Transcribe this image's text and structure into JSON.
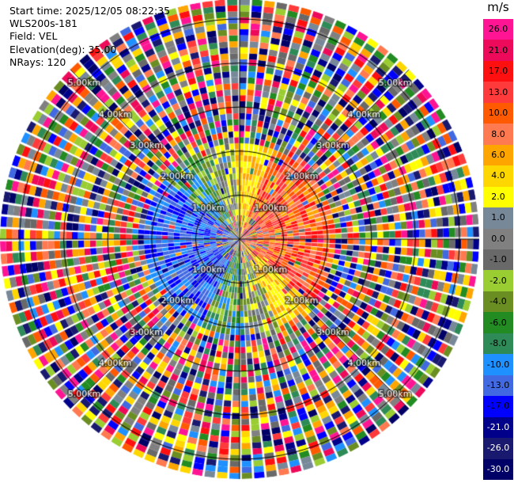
{
  "info": {
    "start_time": "Start time: 2025/12/05 08:22:35",
    "station": "WLS200s-181",
    "field": "Field: VEL",
    "elevation": "Elevation(deg): 35.00",
    "nrays": "NRays: 120"
  },
  "colorbar": {
    "unit": "m/s",
    "labels": [
      "26.0",
      "21.0",
      "17.0",
      "13.0",
      "10.0",
      "8.0",
      "6.0",
      "4.0",
      "2.0",
      "1.0",
      "0.0",
      "-1.0",
      "-2.0",
      "-4.0",
      "-6.0",
      "-8.0",
      "-10.0",
      "-13.0",
      "-17.0",
      "-21.0",
      "-26.0",
      "-30.0"
    ],
    "colors": [
      "#ff1493",
      "#ee0a5a",
      "#ff1010",
      "#ff3a3a",
      "#ff5a00",
      "#ff7a50",
      "#ffa500",
      "#ffd700",
      "#ffff00",
      "#778899",
      "#808080",
      "#696969",
      "#9acd32",
      "#6b8e23",
      "#228b22",
      "#2e8b57",
      "#1e90ff",
      "#4169e1",
      "#0000ff",
      "#00008b",
      "#191970",
      "#000066"
    ]
  },
  "range_rings": [
    {
      "label": "1.00km"
    },
    {
      "label": "2.00km"
    },
    {
      "label": "3.00km"
    },
    {
      "label": "4.00km"
    },
    {
      "label": "5.00km"
    }
  ]
}
